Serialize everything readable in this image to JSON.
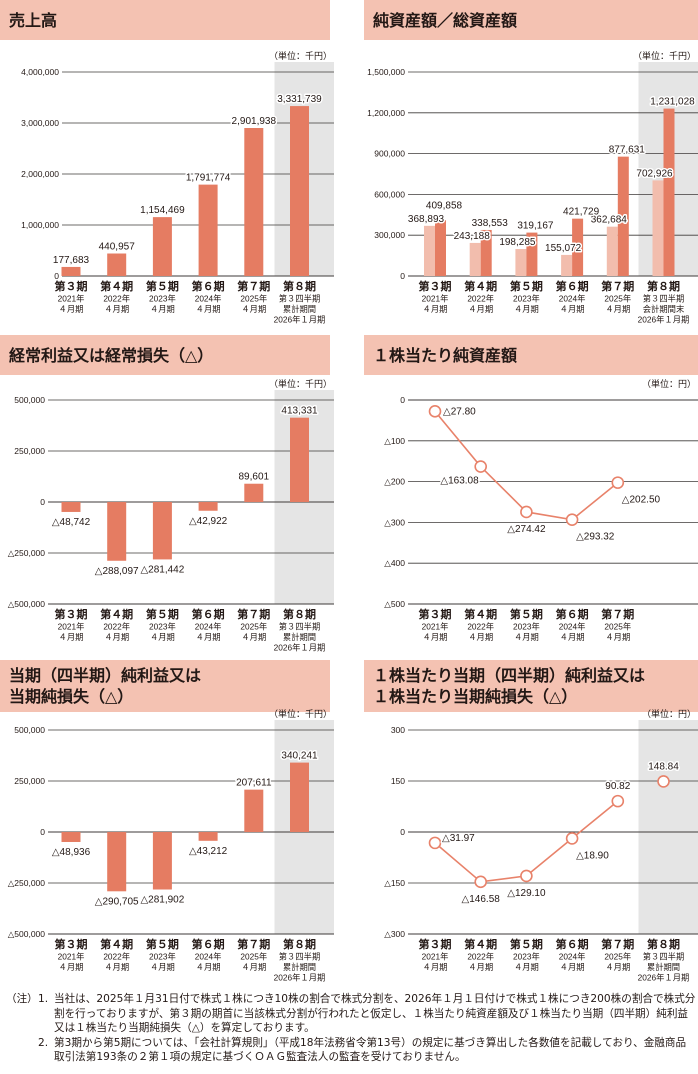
{
  "chart_data": [
    {
      "type": "bar",
      "title": "売上高",
      "unit": "（単位：千円）",
      "ylim": [
        0,
        4000000
      ],
      "yticks": [
        0,
        1000000,
        2000000,
        3000000,
        4000000
      ],
      "ytick_labels": [
        "0",
        "1,000,000",
        "2,000,000",
        "3,000,000",
        "4,000,000"
      ],
      "categories": [
        [
          "第３期",
          "2021年",
          "４月期"
        ],
        [
          "第４期",
          "2022年",
          "４月期"
        ],
        [
          "第５期",
          "2023年",
          "４月期"
        ],
        [
          "第６期",
          "2024年",
          "４月期"
        ],
        [
          "第７期",
          "2025年",
          "４月期"
        ],
        [
          "第８期",
          "第３四半期",
          "累計期間",
          "2026年１月期"
        ]
      ],
      "series": [
        {
          "name": "売上高",
          "values": [
            177683,
            440957,
            1154469,
            1791774,
            2901938,
            3331739
          ],
          "labels": [
            "177,683",
            "440,957",
            "1,154,469",
            "1,791,774",
            "2,901,938",
            "3,331,739"
          ]
        }
      ],
      "highlight_last": true
    },
    {
      "type": "bar",
      "title": "純資産額／総資産額",
      "unit": "（単位：千円）",
      "ylim": [
        0,
        1500000
      ],
      "yticks": [
        0,
        300000,
        600000,
        900000,
        1200000,
        1500000
      ],
      "ytick_labels": [
        "0",
        "300,000",
        "600,000",
        "900,000",
        "1,200,000",
        "1,500,000"
      ],
      "categories": [
        [
          "第３期",
          "2021年",
          "４月期"
        ],
        [
          "第４期",
          "2022年",
          "４月期"
        ],
        [
          "第５期",
          "2023年",
          "４月期"
        ],
        [
          "第６期",
          "2024年",
          "４月期"
        ],
        [
          "第７期",
          "2025年",
          "４月期"
        ],
        [
          "第８期",
          "第３四半期",
          "会計期間末",
          "2026年１月期"
        ]
      ],
      "series": [
        {
          "name": "純資産額",
          "values": [
            368893,
            243188,
            198285,
            155072,
            362684,
            702926
          ],
          "labels": [
            "368,893",
            "243,188",
            "198,285",
            "155,072",
            "362,684",
            "702,926"
          ]
        },
        {
          "name": "総資産額",
          "values": [
            409858,
            338553,
            319167,
            421729,
            877631,
            1231028
          ],
          "labels": [
            "409,858",
            "338,553",
            "319,167",
            "421,729",
            "877,631",
            "1,231,028"
          ]
        }
      ],
      "highlight_last": true
    },
    {
      "type": "bar",
      "title": "経常利益又は経常損失（△）",
      "unit": "（単位：千円）",
      "ylim": [
        -500000,
        500000
      ],
      "yticks": [
        -500000,
        -250000,
        0,
        250000,
        500000
      ],
      "ytick_labels": [
        "△500,000",
        "△250,000",
        "0",
        "250,000",
        "500,000"
      ],
      "categories": [
        [
          "第３期",
          "2021年",
          "４月期"
        ],
        [
          "第４期",
          "2022年",
          "４月期"
        ],
        [
          "第５期",
          "2023年",
          "４月期"
        ],
        [
          "第６期",
          "2024年",
          "４月期"
        ],
        [
          "第７期",
          "2025年",
          "４月期"
        ],
        [
          "第８期",
          "第３四半期",
          "累計期間",
          "2026年１月期"
        ]
      ],
      "series": [
        {
          "name": "経常利益",
          "values": [
            -48742,
            -288097,
            -281442,
            -42922,
            89601,
            413331
          ],
          "labels": [
            "△48,742",
            "△288,097",
            "△281,442",
            "△42,922",
            "89,601",
            "413,331"
          ]
        }
      ],
      "highlight_last": true
    },
    {
      "type": "line",
      "title": "１株当たり純資産額",
      "unit": "（単位：円）",
      "ylim": [
        -500,
        0
      ],
      "yticks": [
        -500,
        -400,
        -300,
        -200,
        -100,
        0
      ],
      "ytick_labels": [
        "△500",
        "△400",
        "△300",
        "△200",
        "△100",
        "0"
      ],
      "categories": [
        [
          "第３期",
          "2021年",
          "４月期"
        ],
        [
          "第４期",
          "2022年",
          "４月期"
        ],
        [
          "第５期",
          "2023年",
          "４月期"
        ],
        [
          "第６期",
          "2024年",
          "４月期"
        ],
        [
          "第７期",
          "2025年",
          "４月期"
        ]
      ],
      "series": [
        {
          "name": "１株当たり純資産額",
          "values": [
            -27.8,
            -163.08,
            -274.42,
            -293.32,
            -202.5
          ],
          "labels": [
            "△27.80",
            "△163.08",
            "△274.42",
            "△293.32",
            "△202.50"
          ]
        }
      ],
      "highlight_last": false
    },
    {
      "type": "bar",
      "title": "当期（四半期）純利益又は当期純損失（△）",
      "title_lines": [
        "当期（四半期）純利益又は",
        "当期純損失（△）"
      ],
      "unit": "（単位：千円）",
      "ylim": [
        -500000,
        500000
      ],
      "yticks": [
        -500000,
        -250000,
        0,
        250000,
        500000
      ],
      "ytick_labels": [
        "△500,000",
        "△250,000",
        "0",
        "250,000",
        "500,000"
      ],
      "categories": [
        [
          "第３期",
          "2021年",
          "４月期"
        ],
        [
          "第４期",
          "2022年",
          "４月期"
        ],
        [
          "第５期",
          "2023年",
          "４月期"
        ],
        [
          "第６期",
          "2024年",
          "４月期"
        ],
        [
          "第７期",
          "2025年",
          "４月期"
        ],
        [
          "第８期",
          "第３四半期",
          "累計期間",
          "2026年１月期"
        ]
      ],
      "series": [
        {
          "name": "純利益",
          "values": [
            -48936,
            -290705,
            -281902,
            -43212,
            207611,
            340241
          ],
          "labels": [
            "△48,936",
            "△290,705",
            "△281,902",
            "△43,212",
            "207,611",
            "340,241"
          ]
        }
      ],
      "highlight_last": true
    },
    {
      "type": "line",
      "title": "１株当たり当期（四半期）純利益又は１株当たり当期純損失（△）",
      "title_lines": [
        "１株当たり当期（四半期）純利益又は",
        "１株当たり当期純損失（△）"
      ],
      "unit": "（単位：円）",
      "ylim": [
        -300,
        300
      ],
      "yticks": [
        -300,
        -150,
        0,
        150,
        300
      ],
      "ytick_labels": [
        "△300",
        "△150",
        "0",
        "150",
        "300"
      ],
      "categories": [
        [
          "第３期",
          "2021年",
          "４月期"
        ],
        [
          "第４期",
          "2022年",
          "４月期"
        ],
        [
          "第５期",
          "2023年",
          "４月期"
        ],
        [
          "第６期",
          "2024年",
          "４月期"
        ],
        [
          "第７期",
          "2025年",
          "４月期"
        ],
        [
          "第８期",
          "第３四半期",
          "累計期間",
          "2026年１月期"
        ]
      ],
      "series": [
        {
          "name": "１株当たり純利益",
          "values": [
            -31.97,
            -146.58,
            -129.1,
            -18.9,
            90.82,
            148.84
          ],
          "labels": [
            "△31.97",
            "△146.58",
            "△129.10",
            "△18.90",
            "90.82",
            "148.84"
          ]
        }
      ],
      "highlight_last": true,
      "connect_last": false
    }
  ],
  "colors": {
    "header": "#f4c2b2",
    "bar": "#e57c62",
    "bar_light": "#f2bdad",
    "shade": "#e5e5e5",
    "grid": "#3e3a39"
  },
  "notes": {
    "mark": "（注）",
    "items": [
      {
        "num": "1.",
        "text": "当社は、2025年１月31日付で株式１株につき10株の割合で株式分割を、2026年１月１日付けで株式１株につき200株の割合で株式分割を行っておりますが、第３期の期首に当該株式分割が行われたと仮定し、１株当たり純資産額及び１株当たり当期（四半期）純利益又は１株当たり当期純損失（△）を算定しております。"
      },
      {
        "num": "2.",
        "text": "第3期から第5期については、「会社計算規則」（平成18年法務省令第13号）の規定に基づき算出した各数値を記載しており、金融商品取引法第193条の２第１項の規定に基づくＯＡＧ監査法人の監査を受けておりません。"
      }
    ]
  }
}
